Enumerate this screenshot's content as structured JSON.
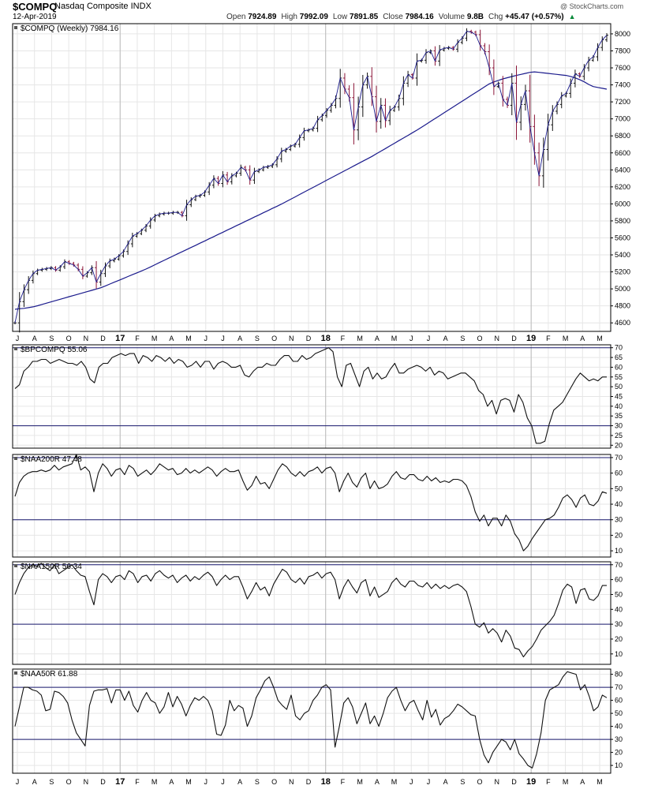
{
  "header": {
    "symbol": "$COMPQ",
    "name": "Nasdaq Composite INDX",
    "date": "12-Apr-2019",
    "watermark": "@ StockCharts.com",
    "quote": [
      {
        "label": "Open",
        "value": "7924.89"
      },
      {
        "label": "High",
        "value": "7992.09"
      },
      {
        "label": "Low",
        "value": "7891.85"
      },
      {
        "label": "Close",
        "value": "7984.16"
      },
      {
        "label": "Volume",
        "value": "9.8B"
      },
      {
        "label": "Chg",
        "value": "+45.47 (+0.57%)"
      }
    ],
    "up_arrow": "up-triangle-icon"
  },
  "colors": {
    "bar_up": "#111111",
    "bar_down": "#8b1538",
    "moving_average": "#1a1a8c",
    "close_line": "#1a1a8c",
    "indicator": "#111111",
    "reference_line": "#1a1a6e",
    "grid": "#e6e6e6",
    "frame": "#000000"
  },
  "chart_data": [
    {
      "type": "ohlc",
      "panel": "price",
      "title": "$COMPQ (Weekly) 7984.16",
      "x_ticks": [
        "J",
        "A",
        "S",
        "O",
        "N",
        "D",
        "17",
        "F",
        "M",
        "A",
        "M",
        "J",
        "J",
        "A",
        "S",
        "O",
        "N",
        "D",
        "18",
        "F",
        "M",
        "A",
        "M",
        "J",
        "J",
        "A",
        "S",
        "O",
        "N",
        "D",
        "19",
        "F",
        "M",
        "A",
        "M"
      ],
      "bold_ticks": [
        "17",
        "18",
        "19"
      ],
      "y_ticks": [
        4600,
        4800,
        5000,
        5200,
        5400,
        5600,
        5800,
        6000,
        6200,
        6400,
        6600,
        6800,
        7000,
        7200,
        7400,
        7600,
        7800,
        8000
      ],
      "ylim": [
        4500,
        8120
      ],
      "grid": true,
      "series": [
        {
          "role": "close",
          "values": [
            4600,
            4850,
            4990,
            5100,
            5180,
            5220,
            5230,
            5240,
            5250,
            5220,
            5260,
            5320,
            5300,
            5280,
            5230,
            5150,
            5190,
            5250,
            5080,
            5180,
            5270,
            5330,
            5350,
            5390,
            5440,
            5530,
            5620,
            5650,
            5690,
            5740,
            5810,
            5860,
            5880,
            5890,
            5890,
            5900,
            5900,
            5860,
            5990,
            6050,
            6090,
            6100,
            6140,
            6220,
            6300,
            6240,
            6340,
            6260,
            6330,
            6360,
            6430,
            6400,
            6280,
            6380,
            6400,
            6430,
            6440,
            6460,
            6530,
            6620,
            6640,
            6680,
            6700,
            6780,
            6860,
            6870,
            6890,
            6990,
            7040,
            7100,
            7160,
            7240,
            7480,
            7350,
            7250,
            6870,
            7140,
            7400,
            7500,
            7260,
            6970,
            7160,
            6980,
            7100,
            7140,
            7240,
            7420,
            7520,
            7480,
            7680,
            7690,
            7780,
            7800,
            7680,
            7810,
            7830,
            7840,
            7820,
            7900,
            7950,
            8030,
            8020,
            7990,
            7860,
            7790,
            7600,
            7380,
            7420,
            7230,
            7160,
            7420,
            6960,
            7170,
            7330,
            6910,
            6600,
            6330,
            6640,
            6930,
            7090,
            7170,
            7270,
            7300,
            7420,
            7530,
            7500,
            7600,
            7690,
            7730,
            7840,
            7930,
            7984
          ]
        },
        {
          "role": "ma40",
          "values": [
            4760,
            4766,
            4771,
            4779,
            4789,
            4802,
            4817,
            4832,
            4847,
            4863,
            4878,
            4893,
            4908,
            4923,
            4938,
            4953,
            4968,
            4983,
            4998,
            5013,
            5035,
            5057,
            5079,
            5101,
            5123,
            5145,
            5167,
            5189,
            5211,
            5233,
            5258,
            5284,
            5310,
            5335,
            5361,
            5386,
            5412,
            5437,
            5463,
            5488,
            5513,
            5539,
            5564,
            5590,
            5615,
            5641,
            5666,
            5692,
            5717,
            5743,
            5768,
            5794,
            5819,
            5845,
            5870,
            5896,
            5921,
            5947,
            5972,
            5998,
            6026,
            6054,
            6082,
            6110,
            6138,
            6166,
            6194,
            6222,
            6250,
            6278,
            6306,
            6334,
            6362,
            6390,
            6418,
            6446,
            6474,
            6502,
            6530,
            6558,
            6589,
            6620,
            6651,
            6682,
            6713,
            6744,
            6775,
            6806,
            6837,
            6868,
            6902,
            6936,
            6970,
            7004,
            7038,
            7072,
            7106,
            7140,
            7174,
            7208,
            7242,
            7276,
            7310,
            7344,
            7378,
            7412,
            7435,
            7453,
            7470,
            7484,
            7498,
            7511,
            7523,
            7535,
            7547,
            7553,
            7547,
            7541,
            7535,
            7529,
            7523,
            7517,
            7511,
            7499,
            7482,
            7462,
            7436,
            7405,
            7380,
            7370,
            7360,
            7350
          ]
        }
      ]
    },
    {
      "type": "line",
      "panel": "indicator",
      "title": "$BPCOMPQ 55.06",
      "y_ticks": [
        20,
        25,
        30,
        35,
        40,
        45,
        50,
        55,
        60,
        65,
        70
      ],
      "ylim": [
        18.5,
        71.5
      ],
      "reference_lines": [
        70,
        30
      ],
      "grid": true,
      "values": [
        49,
        51,
        58,
        60,
        63,
        63,
        64,
        64,
        62,
        63,
        64,
        63,
        62,
        62,
        61,
        63,
        60,
        54,
        52,
        60,
        62,
        62,
        65,
        66,
        67,
        66,
        67,
        67,
        62,
        66,
        65,
        63,
        66,
        65,
        63,
        65,
        62,
        64,
        63,
        60,
        61,
        63,
        60,
        63,
        63,
        59,
        62,
        63,
        62,
        60,
        60,
        61,
        56,
        55,
        58,
        60,
        60,
        62,
        61,
        61,
        64,
        66,
        66,
        63,
        63,
        66,
        64,
        65,
        67,
        68,
        69,
        70,
        68,
        55,
        50,
        61,
        62,
        56,
        50,
        58,
        60,
        54,
        57,
        54,
        55,
        59,
        62,
        57,
        57,
        59,
        60,
        61,
        60,
        58,
        60,
        56,
        58,
        57,
        54,
        55,
        56,
        57,
        57,
        55,
        53,
        48,
        46,
        40,
        43,
        36,
        43,
        44,
        43,
        37,
        46,
        42,
        34,
        30,
        21,
        21,
        22,
        31,
        38,
        40,
        42,
        46,
        50,
        54,
        57,
        55,
        53,
        54,
        53,
        55,
        55
      ]
    },
    {
      "type": "line",
      "panel": "indicator",
      "title": "$NAA200R 47.48",
      "y_ticks": [
        10,
        20,
        30,
        40,
        50,
        60,
        70
      ],
      "ylim": [
        6,
        72
      ],
      "reference_lines": [
        70,
        30
      ],
      "grid": true,
      "values": [
        45,
        54,
        58,
        60,
        61,
        61,
        62,
        61,
        62,
        65,
        62,
        64,
        65,
        66,
        72,
        62,
        64,
        61,
        48,
        60,
        66,
        63,
        58,
        62,
        63,
        59,
        65,
        63,
        58,
        60,
        62,
        59,
        62,
        66,
        64,
        62,
        63,
        59,
        60,
        63,
        60,
        62,
        60,
        62,
        64,
        62,
        58,
        61,
        63,
        61,
        61,
        62,
        55,
        49,
        52,
        58,
        53,
        54,
        50,
        56,
        62,
        66,
        64,
        60,
        58,
        61,
        58,
        61,
        62,
        64,
        60,
        63,
        64,
        60,
        48,
        55,
        60,
        54,
        51,
        57,
        60,
        50,
        55,
        50,
        51,
        53,
        58,
        61,
        57,
        56,
        59,
        59,
        56,
        55,
        58,
        55,
        57,
        54,
        55,
        54,
        56,
        56,
        55,
        52,
        45,
        35,
        29,
        33,
        26,
        31,
        31,
        26,
        33,
        29,
        21,
        17,
        10,
        13,
        18,
        22,
        26,
        30,
        31,
        33,
        38,
        44,
        46,
        43,
        38,
        44,
        46,
        40,
        39,
        42,
        48,
        47
      ]
    },
    {
      "type": "line",
      "panel": "indicator",
      "title": "$NAA150R 56.34",
      "y_ticks": [
        10,
        20,
        30,
        40,
        50,
        60,
        70
      ],
      "ylim": [
        3,
        72
      ],
      "reference_lines": [
        70,
        30
      ],
      "grid": true,
      "values": [
        50,
        58,
        64,
        68,
        70,
        69,
        71,
        68,
        66,
        70,
        64,
        66,
        68,
        70,
        66,
        63,
        62,
        52,
        43,
        60,
        64,
        62,
        58,
        62,
        63,
        60,
        66,
        64,
        58,
        62,
        63,
        59,
        64,
        66,
        63,
        61,
        63,
        58,
        61,
        63,
        59,
        62,
        60,
        63,
        65,
        62,
        56,
        60,
        63,
        60,
        62,
        62,
        55,
        47,
        52,
        58,
        53,
        55,
        49,
        57,
        62,
        67,
        65,
        60,
        58,
        61,
        57,
        62,
        63,
        65,
        61,
        64,
        65,
        60,
        47,
        55,
        60,
        55,
        51,
        58,
        60,
        49,
        55,
        48,
        50,
        52,
        58,
        61,
        57,
        55,
        59,
        59,
        56,
        55,
        58,
        54,
        57,
        54,
        56,
        54,
        56,
        57,
        55,
        52,
        42,
        30,
        28,
        31,
        24,
        27,
        24,
        18,
        26,
        22,
        14,
        13,
        8,
        12,
        15,
        20,
        26,
        29,
        32,
        36,
        44,
        53,
        57,
        55,
        44,
        53,
        54,
        47,
        46,
        49,
        56,
        56
      ]
    },
    {
      "type": "line",
      "panel": "indicator",
      "title": "$NAA50R 61.88",
      "y_ticks": [
        10,
        20,
        30,
        40,
        50,
        60,
        70,
        80
      ],
      "ylim": [
        4,
        84
      ],
      "reference_lines": [
        70,
        30
      ],
      "grid": true,
      "values": [
        40,
        55,
        70,
        70,
        68,
        67,
        64,
        52,
        53,
        67,
        66,
        63,
        58,
        45,
        35,
        30,
        25,
        56,
        67,
        68,
        68,
        69,
        58,
        68,
        68,
        60,
        67,
        56,
        51,
        60,
        66,
        60,
        58,
        50,
        55,
        66,
        55,
        63,
        57,
        48,
        56,
        62,
        60,
        63,
        60,
        52,
        34,
        33,
        41,
        60,
        52,
        56,
        54,
        40,
        48,
        62,
        68,
        75,
        78,
        70,
        60,
        56,
        53,
        64,
        48,
        45,
        50,
        52,
        60,
        64,
        70,
        72,
        68,
        24,
        40,
        58,
        62,
        55,
        42,
        50,
        58,
        42,
        48,
        40,
        50,
        62,
        67,
        70,
        60,
        52,
        58,
        60,
        52,
        45,
        60,
        47,
        53,
        41,
        46,
        48,
        52,
        57,
        55,
        52,
        49,
        48,
        30,
        18,
        12,
        20,
        25,
        30,
        28,
        22,
        30,
        19,
        15,
        10,
        8,
        19,
        35,
        60,
        68,
        70,
        72,
        78,
        82,
        81,
        80,
        68,
        72,
        63,
        52,
        55,
        64,
        62
      ]
    }
  ]
}
